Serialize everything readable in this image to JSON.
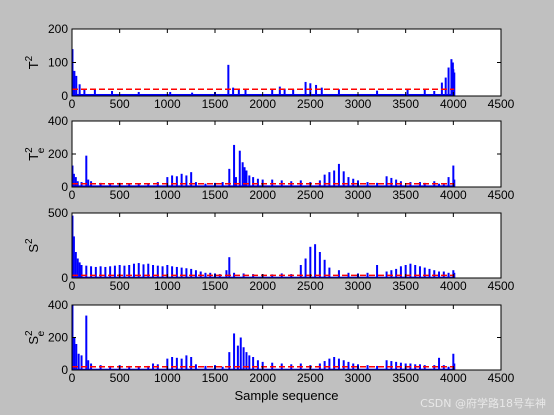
{
  "figure": {
    "background": "#c0c0c0",
    "watermark": "CSDN @府学路18号车神"
  },
  "colors": {
    "signal": "#0000ff",
    "limit": "#ff0000",
    "axes_bg": "#ffffff"
  },
  "chart_data": [
    {
      "type": "line",
      "ylabel_base": "T",
      "ylabel_sup": "2",
      "ylabel_sub": "",
      "xlim": [
        0,
        4500
      ],
      "ylim": [
        0,
        200
      ],
      "xticks": [
        0,
        500,
        1000,
        1500,
        2000,
        2500,
        3000,
        3500,
        4000,
        4500
      ],
      "yticks": [
        0,
        100,
        200
      ],
      "show_xticklabels": true,
      "baseline": 6,
      "limit": 20,
      "spikes": [
        [
          5,
          140
        ],
        [
          12,
          55
        ],
        [
          25,
          75
        ],
        [
          45,
          60
        ],
        [
          80,
          35
        ],
        [
          130,
          22
        ],
        [
          240,
          18
        ],
        [
          420,
          15
        ],
        [
          700,
          12
        ],
        [
          1030,
          12
        ],
        [
          1260,
          10
        ],
        [
          1500,
          12
        ],
        [
          1640,
          93
        ],
        [
          1690,
          25
        ],
        [
          1750,
          20
        ],
        [
          1820,
          22
        ],
        [
          2100,
          22
        ],
        [
          2180,
          28
        ],
        [
          2230,
          22
        ],
        [
          2320,
          20
        ],
        [
          2450,
          42
        ],
        [
          2500,
          38
        ],
        [
          2560,
          33
        ],
        [
          2620,
          25
        ],
        [
          2800,
          20
        ],
        [
          3200,
          16
        ],
        [
          3520,
          18
        ],
        [
          3700,
          18
        ],
        [
          3800,
          15
        ],
        [
          3880,
          40
        ],
        [
          3920,
          55
        ],
        [
          3950,
          85
        ],
        [
          3980,
          110
        ],
        [
          3995,
          100
        ],
        [
          4000,
          80
        ],
        [
          4010,
          70
        ]
      ]
    },
    {
      "type": "line",
      "ylabel_base": "T",
      "ylabel_sup": "2",
      "ylabel_sub": "e",
      "xlim": [
        0,
        4500
      ],
      "ylim": [
        0,
        400
      ],
      "xticks": [
        0,
        500,
        1000,
        1500,
        2000,
        2500,
        3000,
        3500,
        4000,
        4500
      ],
      "yticks": [
        0,
        200,
        400
      ],
      "show_xticklabels": true,
      "baseline": 10,
      "limit": 20,
      "spikes": [
        [
          5,
          130
        ],
        [
          20,
          80
        ],
        [
          40,
          60
        ],
        [
          60,
          35
        ],
        [
          100,
          30
        ],
        [
          150,
          190
        ],
        [
          170,
          45
        ],
        [
          200,
          35
        ],
        [
          300,
          25
        ],
        [
          400,
          22
        ],
        [
          500,
          25
        ],
        [
          600,
          22
        ],
        [
          700,
          20
        ],
        [
          800,
          20
        ],
        [
          900,
          30
        ],
        [
          1000,
          60
        ],
        [
          1050,
          70
        ],
        [
          1100,
          65
        ],
        [
          1150,
          80
        ],
        [
          1200,
          70
        ],
        [
          1250,
          90
        ],
        [
          1300,
          30
        ],
        [
          1400,
          20
        ],
        [
          1500,
          25
        ],
        [
          1580,
          30
        ],
        [
          1650,
          110
        ],
        [
          1700,
          255
        ],
        [
          1720,
          60
        ],
        [
          1760,
          220
        ],
        [
          1790,
          150
        ],
        [
          1810,
          120
        ],
        [
          1830,
          100
        ],
        [
          1860,
          70
        ],
        [
          1900,
          60
        ],
        [
          1950,
          50
        ],
        [
          2000,
          45
        ],
        [
          2100,
          45
        ],
        [
          2200,
          40
        ],
        [
          2300,
          35
        ],
        [
          2400,
          40
        ],
        [
          2500,
          30
        ],
        [
          2600,
          40
        ],
        [
          2650,
          75
        ],
        [
          2700,
          90
        ],
        [
          2750,
          100
        ],
        [
          2800,
          140
        ],
        [
          2850,
          95
        ],
        [
          2900,
          60
        ],
        [
          2950,
          50
        ],
        [
          3000,
          40
        ],
        [
          3100,
          30
        ],
        [
          3200,
          25
        ],
        [
          3300,
          65
        ],
        [
          3350,
          55
        ],
        [
          3400,
          45
        ],
        [
          3450,
          35
        ],
        [
          3550,
          30
        ],
        [
          3650,
          30
        ],
        [
          3700,
          25
        ],
        [
          3800,
          35
        ],
        [
          3850,
          20
        ],
        [
          3900,
          15
        ],
        [
          3950,
          60
        ],
        [
          4000,
          130
        ],
        [
          4010,
          45
        ]
      ]
    },
    {
      "type": "line",
      "ylabel_base": "S",
      "ylabel_sup": "2",
      "ylabel_sub": "",
      "xlim": [
        0,
        4500
      ],
      "ylim": [
        0,
        500
      ],
      "xticks": [
        0,
        500,
        1000,
        1500,
        2000,
        2500,
        3000,
        3500,
        4000,
        4500
      ],
      "yticks": [
        0,
        500
      ],
      "show_xticklabels": true,
      "baseline": 10,
      "limit": 20,
      "spikes": [
        [
          5,
          480
        ],
        [
          20,
          320
        ],
        [
          40,
          200
        ],
        [
          60,
          150
        ],
        [
          80,
          120
        ],
        [
          100,
          100
        ],
        [
          150,
          95
        ],
        [
          200,
          90
        ],
        [
          250,
          85
        ],
        [
          300,
          90
        ],
        [
          350,
          85
        ],
        [
          400,
          90
        ],
        [
          450,
          95
        ],
        [
          500,
          100
        ],
        [
          550,
          95
        ],
        [
          600,
          100
        ],
        [
          650,
          110
        ],
        [
          700,
          115
        ],
        [
          750,
          105
        ],
        [
          800,
          110
        ],
        [
          850,
          100
        ],
        [
          900,
          95
        ],
        [
          950,
          90
        ],
        [
          1000,
          100
        ],
        [
          1050,
          90
        ],
        [
          1100,
          85
        ],
        [
          1150,
          80
        ],
        [
          1200,
          75
        ],
        [
          1250,
          70
        ],
        [
          1300,
          60
        ],
        [
          1350,
          50
        ],
        [
          1400,
          40
        ],
        [
          1450,
          40
        ],
        [
          1500,
          35
        ],
        [
          1550,
          30
        ],
        [
          1620,
          60
        ],
        [
          1650,
          160
        ],
        [
          1700,
          40
        ],
        [
          1800,
          35
        ],
        [
          1900,
          30
        ],
        [
          2000,
          30
        ],
        [
          2100,
          28
        ],
        [
          2200,
          35
        ],
        [
          2300,
          30
        ],
        [
          2400,
          100
        ],
        [
          2450,
          150
        ],
        [
          2500,
          240
        ],
        [
          2550,
          260
        ],
        [
          2600,
          200
        ],
        [
          2650,
          140
        ],
        [
          2700,
          80
        ],
        [
          2800,
          60
        ],
        [
          2900,
          40
        ],
        [
          3000,
          35
        ],
        [
          3100,
          40
        ],
        [
          3200,
          100
        ],
        [
          3300,
          50
        ],
        [
          3350,
          60
        ],
        [
          3400,
          70
        ],
        [
          3450,
          90
        ],
        [
          3500,
          100
        ],
        [
          3550,
          110
        ],
        [
          3600,
          100
        ],
        [
          3650,
          90
        ],
        [
          3700,
          80
        ],
        [
          3750,
          70
        ],
        [
          3800,
          60
        ],
        [
          3850,
          50
        ],
        [
          3900,
          50
        ],
        [
          3950,
          40
        ],
        [
          4000,
          60
        ],
        [
          4010,
          40
        ]
      ]
    },
    {
      "type": "line",
      "ylabel_base": "S",
      "ylabel_sup": "2",
      "ylabel_sub": "e",
      "xlim": [
        0,
        4500
      ],
      "ylim": [
        0,
        400
      ],
      "xticks": [
        0,
        500,
        1000,
        1500,
        2000,
        2500,
        3000,
        3500,
        4000,
        4500
      ],
      "yticks": [
        0,
        200,
        400
      ],
      "show_xticklabels": true,
      "xlabel": "Sample sequence",
      "baseline": 8,
      "limit": 20,
      "spikes": [
        [
          5,
          400
        ],
        [
          25,
          200
        ],
        [
          45,
          160
        ],
        [
          70,
          100
        ],
        [
          100,
          90
        ],
        [
          150,
          335
        ],
        [
          170,
          60
        ],
        [
          200,
          40
        ],
        [
          300,
          30
        ],
        [
          400,
          25
        ],
        [
          500,
          30
        ],
        [
          600,
          25
        ],
        [
          700,
          20
        ],
        [
          800,
          25
        ],
        [
          850,
          40
        ],
        [
          900,
          35
        ],
        [
          1000,
          70
        ],
        [
          1050,
          80
        ],
        [
          1100,
          75
        ],
        [
          1150,
          70
        ],
        [
          1200,
          90
        ],
        [
          1250,
          80
        ],
        [
          1300,
          35
        ],
        [
          1400,
          25
        ],
        [
          1500,
          30
        ],
        [
          1580,
          20
        ],
        [
          1650,
          110
        ],
        [
          1700,
          225
        ],
        [
          1740,
          150
        ],
        [
          1770,
          200
        ],
        [
          1800,
          140
        ],
        [
          1830,
          110
        ],
        [
          1860,
          90
        ],
        [
          1900,
          80
        ],
        [
          1950,
          60
        ],
        [
          2000,
          50
        ],
        [
          2100,
          45
        ],
        [
          2200,
          40
        ],
        [
          2300,
          35
        ],
        [
          2400,
          40
        ],
        [
          2500,
          30
        ],
        [
          2600,
          40
        ],
        [
          2650,
          55
        ],
        [
          2700,
          70
        ],
        [
          2750,
          80
        ],
        [
          2800,
          70
        ],
        [
          2850,
          60
        ],
        [
          2900,
          50
        ],
        [
          2950,
          40
        ],
        [
          3000,
          35
        ],
        [
          3100,
          30
        ],
        [
          3200,
          25
        ],
        [
          3300,
          60
        ],
        [
          3350,
          55
        ],
        [
          3400,
          50
        ],
        [
          3450,
          45
        ],
        [
          3500,
          40
        ],
        [
          3550,
          40
        ],
        [
          3600,
          35
        ],
        [
          3650,
          35
        ],
        [
          3700,
          30
        ],
        [
          3800,
          30
        ],
        [
          3850,
          75
        ],
        [
          3900,
          30
        ],
        [
          3950,
          20
        ],
        [
          4000,
          100
        ],
        [
          4010,
          40
        ]
      ]
    }
  ]
}
